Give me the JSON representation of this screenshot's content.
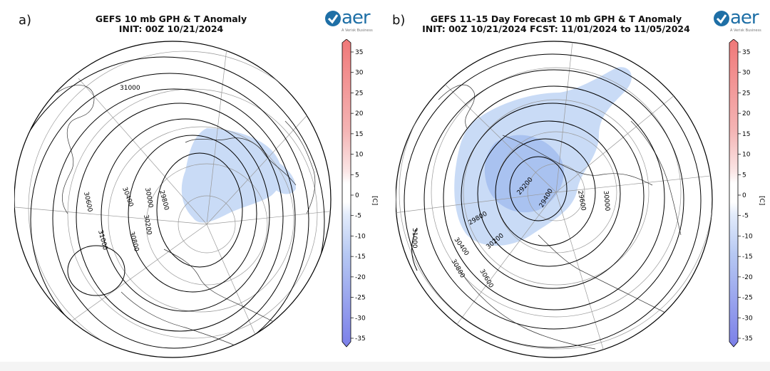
{
  "panels": [
    {
      "letter": "a)",
      "title_line1": "GEFS 10 mb GPH & T Anomaly",
      "title_line2": "INIT: 00Z 10/21/2024",
      "logo_text": "aer",
      "logo_subtext": "A Verisk Business",
      "colorbar_label": "[C]",
      "contour_labels": [
        "31000",
        "30400",
        "30000",
        "29800",
        "30600",
        "30200",
        "31000",
        "30800"
      ]
    },
    {
      "letter": "b)",
      "title_line1": "GEFS 11-15 Day Forecast 10 mb GPH & T Anomaly",
      "title_line2": "INIT: 00Z 10/21/2024     FCST: 11/01/2024 to 11/05/2024",
      "logo_text": "aer",
      "logo_subtext": "A Verisk Business",
      "colorbar_label": "[C]",
      "contour_labels": [
        "31000",
        "29200",
        "29600",
        "30000",
        "29400",
        "29800",
        "30400",
        "30200",
        "30800",
        "30600"
      ]
    }
  ],
  "colorbar_ticks": [
    "35",
    "30",
    "25",
    "20",
    "15",
    "10",
    "5",
    "0",
    "-5",
    "-10",
    "-15",
    "-20",
    "-25",
    "-30",
    "-35"
  ],
  "colors": {
    "positive_max": "#f07878",
    "negative_max": "#7b7fe8",
    "anomaly_light_blue": "#c9dbf6",
    "anomaly_mid_blue": "#a9c2f0",
    "contour": "#000000",
    "logo_blue": "#1e6fa6"
  }
}
